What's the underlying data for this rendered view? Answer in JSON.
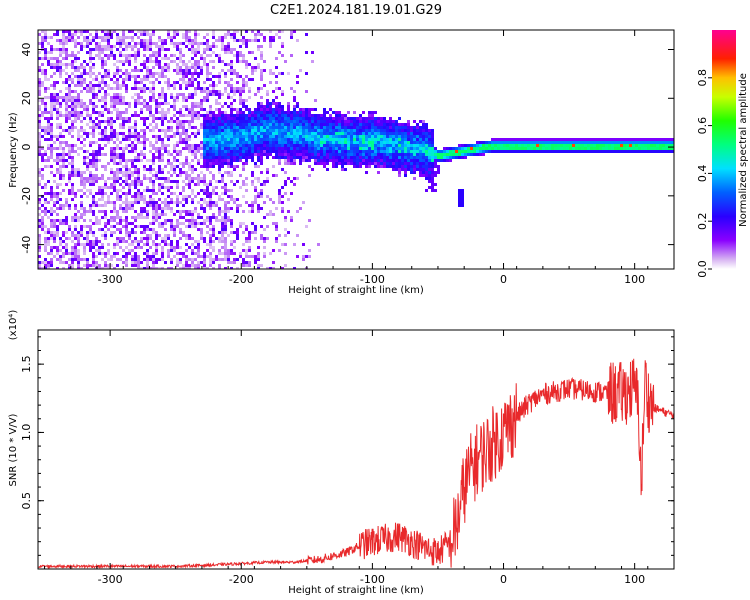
{
  "title": "C2E1.2024.181.19.01.G29",
  "chart_data": [
    {
      "type": "heatmap",
      "xlabel": "Height of straight line (km)",
      "ylabel": "Frequency (Hz)",
      "xlim": [
        -355,
        130
      ],
      "ylim": [
        -50,
        48
      ],
      "xticks": [
        -300,
        -200,
        -100,
        0,
        100
      ],
      "yticks": [
        -40,
        -20,
        0,
        20,
        40
      ],
      "grid": false,
      "colorbar": {
        "label": "Normalized spectral amplitude",
        "range": [
          0,
          1
        ],
        "ticks": [
          0.0,
          0.2,
          0.4,
          0.6,
          0.8
        ],
        "colormap": "hsv-rainbow (purple-blue-cyan-green-yellow-red-magenta)"
      },
      "signal_trace": {
        "x": [
          -230,
          -200,
          -180,
          -160,
          -140,
          -120,
          -100,
          -90,
          -80,
          -70,
          -60,
          -50,
          -40,
          -30,
          -20,
          -10,
          0,
          20,
          40,
          60,
          80,
          100,
          120,
          130
        ],
        "y": [
          3,
          5,
          8,
          6,
          4,
          3,
          3,
          2,
          1,
          0,
          -1,
          -3,
          -2,
          -1,
          0,
          1,
          1,
          1,
          1,
          1,
          1,
          1,
          1,
          1
        ]
      },
      "noise_region_x": [
        -355,
        -140
      ],
      "isolated_blob": {
        "x": -34,
        "y": -20
      }
    },
    {
      "type": "line",
      "xlabel": "Height of straight line (km)",
      "ylabel": "SNR (10 * V/V)",
      "y_multiplier": "(x10⁴)",
      "xlim": [
        -355,
        130
      ],
      "ylim": [
        0,
        1.75
      ],
      "xticks": [
        -300,
        -200,
        -100,
        0,
        100
      ],
      "yticks": [
        0.5,
        1.0,
        1.5
      ],
      "ytick_labels": [
        "0.5",
        "1.0",
        "1.5"
      ],
      "grid": false,
      "series": [
        {
          "color": "#e8292b",
          "x": [
            -355,
            -300,
            -250,
            -220,
            -200,
            -180,
            -160,
            -140,
            -120,
            -110,
            -100,
            -90,
            -80,
            -70,
            -60,
            -50,
            -40,
            -35,
            -30,
            -25,
            -20,
            -10,
            0,
            10,
            20,
            30,
            40,
            50,
            60,
            70,
            80,
            90,
            95,
            100,
            103,
            105,
            108,
            110,
            115,
            120,
            125,
            130
          ],
          "y": [
            0.02,
            0.02,
            0.02,
            0.03,
            0.04,
            0.05,
            0.05,
            0.07,
            0.12,
            0.17,
            0.2,
            0.22,
            0.24,
            0.2,
            0.15,
            0.12,
            0.2,
            0.35,
            0.6,
            0.72,
            0.8,
            0.9,
            1.0,
            1.12,
            1.22,
            1.28,
            1.3,
            1.32,
            1.31,
            1.3,
            1.29,
            1.28,
            1.3,
            1.33,
            1.2,
            0.6,
            1.4,
            1.25,
            1.18,
            1.16,
            1.14,
            1.13
          ]
        }
      ]
    }
  ]
}
